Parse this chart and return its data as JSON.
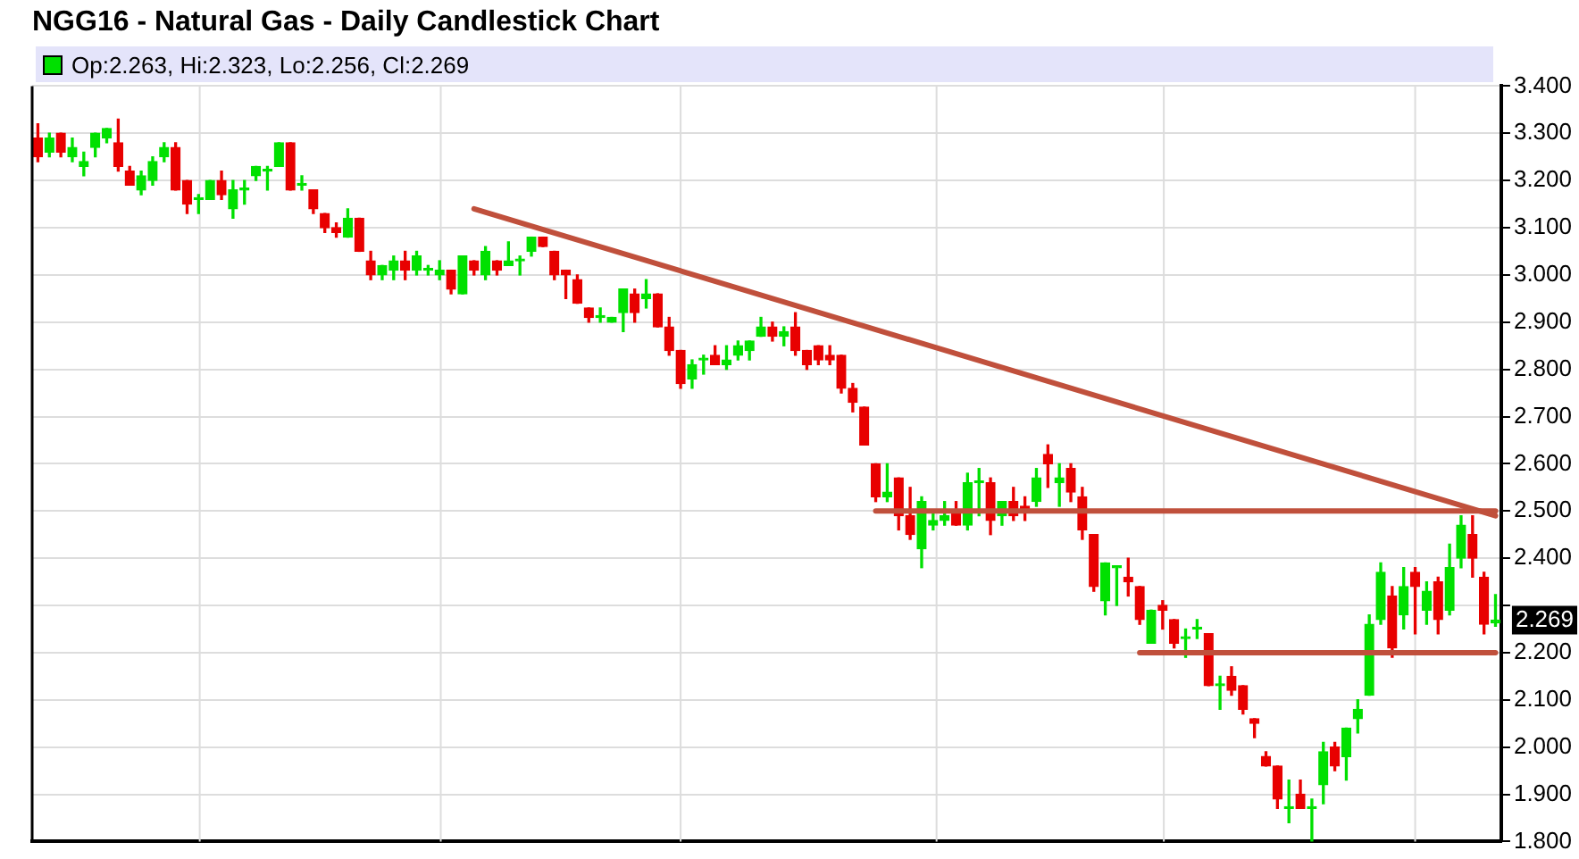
{
  "chart_data": {
    "type": "candlestick",
    "title": "NGG16 - Natural Gas - Daily Candlestick Chart",
    "categories": [
      null,
      null,
      null,
      null,
      null,
      null,
      null,
      null,
      null,
      null,
      null,
      null,
      null,
      null,
      null,
      null,
      null,
      null,
      null,
      null,
      null,
      null,
      null,
      null,
      null,
      null,
      null,
      null,
      null,
      null,
      null,
      null,
      null,
      null,
      null,
      null,
      null,
      null,
      null,
      null,
      null,
      null,
      null,
      null,
      null,
      null,
      null,
      null,
      null,
      null,
      null,
      null,
      null,
      null,
      null,
      null,
      null,
      null,
      null,
      null,
      null,
      null,
      null,
      null,
      null,
      null,
      null,
      null,
      null,
      null,
      null,
      null,
      null,
      null,
      null,
      null,
      null,
      null,
      null,
      null,
      null,
      null,
      null,
      null,
      null,
      null,
      null,
      null,
      null,
      null,
      null,
      null,
      null,
      null,
      null,
      null,
      null,
      null,
      null,
      null,
      null,
      null,
      null,
      null,
      null,
      null,
      null,
      null,
      null,
      null,
      null,
      null,
      null,
      null,
      null,
      null,
      null,
      null,
      null,
      null,
      null,
      null,
      null,
      null,
      null,
      null,
      null,
      null
    ],
    "ohlc": [
      [
        3.29,
        3.32,
        3.24,
        3.25
      ],
      [
        3.26,
        3.3,
        3.25,
        3.29
      ],
      [
        3.3,
        3.3,
        3.25,
        3.26
      ],
      [
        3.25,
        3.29,
        3.24,
        3.27
      ],
      [
        3.23,
        3.26,
        3.21,
        3.24
      ],
      [
        3.27,
        3.3,
        3.25,
        3.3
      ],
      [
        3.29,
        3.31,
        3.28,
        3.31
      ],
      [
        3.28,
        3.33,
        3.22,
        3.23
      ],
      [
        3.22,
        3.23,
        3.19,
        3.19
      ],
      [
        3.18,
        3.22,
        3.17,
        3.21
      ],
      [
        3.2,
        3.25,
        3.19,
        3.24
      ],
      [
        3.25,
        3.28,
        3.24,
        3.27
      ],
      [
        3.27,
        3.28,
        3.18,
        3.18
      ],
      [
        3.2,
        3.2,
        3.13,
        3.15
      ],
      [
        3.16,
        3.17,
        3.13,
        3.16
      ],
      [
        3.16,
        3.2,
        3.16,
        3.2
      ],
      [
        3.2,
        3.22,
        3.16,
        3.17
      ],
      [
        3.14,
        3.2,
        3.12,
        3.18
      ],
      [
        3.18,
        3.2,
        3.15,
        3.18
      ],
      [
        3.21,
        3.23,
        3.2,
        3.23
      ],
      [
        3.22,
        3.23,
        3.18,
        3.22
      ],
      [
        3.23,
        3.28,
        3.23,
        3.28
      ],
      [
        3.28,
        3.28,
        3.18,
        3.18
      ],
      [
        3.19,
        3.21,
        3.18,
        3.19
      ],
      [
        3.18,
        3.18,
        3.13,
        3.14
      ],
      [
        3.13,
        3.13,
        3.09,
        3.1
      ],
      [
        3.1,
        3.11,
        3.08,
        3.09
      ],
      [
        3.08,
        3.14,
        3.08,
        3.12
      ],
      [
        3.12,
        3.12,
        3.05,
        3.05
      ],
      [
        3.03,
        3.05,
        2.99,
        3.0
      ],
      [
        3.0,
        3.02,
        2.99,
        3.02
      ],
      [
        3.01,
        3.04,
        2.99,
        3.03
      ],
      [
        3.03,
        3.05,
        2.99,
        3.01
      ],
      [
        3.01,
        3.05,
        3.0,
        3.04
      ],
      [
        3.01,
        3.02,
        3.0,
        3.01
      ],
      [
        3.0,
        3.03,
        2.99,
        3.01
      ],
      [
        3.01,
        3.01,
        2.96,
        2.97
      ],
      [
        2.96,
        3.04,
        2.96,
        3.04
      ],
      [
        3.03,
        3.03,
        3.0,
        3.01
      ],
      [
        3.0,
        3.06,
        2.99,
        3.05
      ],
      [
        3.03,
        3.03,
        3.0,
        3.01
      ],
      [
        3.02,
        3.07,
        3.02,
        3.03
      ],
      [
        3.03,
        3.04,
        3.0,
        3.03
      ],
      [
        3.05,
        3.08,
        3.04,
        3.08
      ],
      [
        3.08,
        3.08,
        3.06,
        3.06
      ],
      [
        3.05,
        3.05,
        2.99,
        3.0
      ],
      [
        3.01,
        3.01,
        2.95,
        3.0
      ],
      [
        2.99,
        3.0,
        2.94,
        2.94
      ],
      [
        2.93,
        2.93,
        2.9,
        2.91
      ],
      [
        2.91,
        2.93,
        2.9,
        2.91
      ],
      [
        2.9,
        2.91,
        2.9,
        2.91
      ],
      [
        2.92,
        2.97,
        2.88,
        2.97
      ],
      [
        2.96,
        2.97,
        2.9,
        2.92
      ],
      [
        2.95,
        2.99,
        2.93,
        2.96
      ],
      [
        2.96,
        2.96,
        2.89,
        2.89
      ],
      [
        2.89,
        2.91,
        2.83,
        2.84
      ],
      [
        2.84,
        2.84,
        2.76,
        2.77
      ],
      [
        2.78,
        2.82,
        2.76,
        2.81
      ],
      [
        2.82,
        2.83,
        2.79,
        2.82
      ],
      [
        2.83,
        2.85,
        2.81,
        2.81
      ],
      [
        2.81,
        2.85,
        2.8,
        2.82
      ],
      [
        2.83,
        2.86,
        2.82,
        2.85
      ],
      [
        2.84,
        2.86,
        2.82,
        2.86
      ],
      [
        2.87,
        2.91,
        2.87,
        2.89
      ],
      [
        2.89,
        2.9,
        2.86,
        2.87
      ],
      [
        2.87,
        2.89,
        2.85,
        2.88
      ],
      [
        2.89,
        2.92,
        2.83,
        2.84
      ],
      [
        2.84,
        2.84,
        2.8,
        2.81
      ],
      [
        2.85,
        2.85,
        2.81,
        2.82
      ],
      [
        2.83,
        2.85,
        2.81,
        2.82
      ],
      [
        2.83,
        2.83,
        2.75,
        2.76
      ],
      [
        2.76,
        2.77,
        2.71,
        2.73
      ],
      [
        2.72,
        2.72,
        2.64,
        2.64
      ],
      [
        2.6,
        2.6,
        2.52,
        2.53
      ],
      [
        2.53,
        2.6,
        2.52,
        2.54
      ],
      [
        2.57,
        2.57,
        2.46,
        2.49
      ],
      [
        2.49,
        2.55,
        2.44,
        2.45
      ],
      [
        2.42,
        2.53,
        2.38,
        2.52
      ],
      [
        2.47,
        2.5,
        2.46,
        2.48
      ],
      [
        2.48,
        2.52,
        2.47,
        2.49
      ],
      [
        2.5,
        2.52,
        2.47,
        2.47
      ],
      [
        2.47,
        2.58,
        2.46,
        2.56
      ],
      [
        2.56,
        2.59,
        2.49,
        2.56
      ],
      [
        2.56,
        2.57,
        2.45,
        2.48
      ],
      [
        2.49,
        2.52,
        2.47,
        2.52
      ],
      [
        2.52,
        2.55,
        2.48,
        2.49
      ],
      [
        2.51,
        2.53,
        2.48,
        2.5
      ],
      [
        2.52,
        2.59,
        2.51,
        2.57
      ],
      [
        2.62,
        2.64,
        2.55,
        2.6
      ],
      [
        2.56,
        2.6,
        2.51,
        2.57
      ],
      [
        2.59,
        2.6,
        2.52,
        2.54
      ],
      [
        2.53,
        2.55,
        2.44,
        2.46
      ],
      [
        2.45,
        2.45,
        2.33,
        2.34
      ],
      [
        2.31,
        2.39,
        2.28,
        2.39
      ],
      [
        2.38,
        2.38,
        2.3,
        2.38
      ],
      [
        2.36,
        2.4,
        2.32,
        2.35
      ],
      [
        2.34,
        2.34,
        2.26,
        2.27
      ],
      [
        2.22,
        2.29,
        2.22,
        2.29
      ],
      [
        2.3,
        2.31,
        2.25,
        2.29
      ],
      [
        2.27,
        2.27,
        2.21,
        2.22
      ],
      [
        2.23,
        2.25,
        2.19,
        2.23
      ],
      [
        2.25,
        2.27,
        2.23,
        2.25
      ],
      [
        2.24,
        2.24,
        2.13,
        2.13
      ],
      [
        2.13,
        2.15,
        2.08,
        2.13
      ],
      [
        2.15,
        2.17,
        2.11,
        2.12
      ],
      [
        2.13,
        2.13,
        2.07,
        2.08
      ],
      [
        2.06,
        2.06,
        2.02,
        2.05
      ],
      [
        1.98,
        1.99,
        1.96,
        1.96
      ],
      [
        1.96,
        1.96,
        1.87,
        1.89
      ],
      [
        1.87,
        1.93,
        1.84,
        1.87
      ],
      [
        1.9,
        1.93,
        1.87,
        1.87
      ],
      [
        1.87,
        1.89,
        1.8,
        1.87
      ],
      [
        1.92,
        2.01,
        1.88,
        1.99
      ],
      [
        2.0,
        2.01,
        1.95,
        1.96
      ],
      [
        1.98,
        2.04,
        1.93,
        2.04
      ],
      [
        2.06,
        2.1,
        2.03,
        2.08
      ],
      [
        2.11,
        2.28,
        2.11,
        2.26
      ],
      [
        2.27,
        2.39,
        2.26,
        2.37
      ],
      [
        2.32,
        2.34,
        2.19,
        2.21
      ],
      [
        2.28,
        2.38,
        2.25,
        2.34
      ],
      [
        2.37,
        2.38,
        2.24,
        2.34
      ],
      [
        2.29,
        2.35,
        2.26,
        2.33
      ],
      [
        2.35,
        2.36,
        2.24,
        2.27
      ],
      [
        2.29,
        2.43,
        2.28,
        2.38
      ],
      [
        2.4,
        2.49,
        2.38,
        2.47
      ],
      [
        2.45,
        2.49,
        2.36,
        2.4
      ],
      [
        2.36,
        2.37,
        2.24,
        2.26
      ],
      [
        2.263,
        2.323,
        2.256,
        2.269
      ]
    ],
    "colors": [
      "#e80000",
      "#00e000",
      "#e80000",
      "#00e000",
      "#00e000",
      "#00e000",
      "#00e000",
      "#e80000",
      "#e80000",
      "#00e000",
      "#00e000",
      "#00e000",
      "#e80000",
      "#e80000",
      "#00e000",
      "#00e000",
      "#e80000",
      "#00e000",
      "#00e000",
      "#00e000",
      "#00e000",
      "#00e000",
      "#e80000",
      "#00e000",
      "#e80000",
      "#e80000",
      "#e80000",
      "#00e000",
      "#e80000",
      "#e80000",
      "#00e000",
      "#00e000",
      "#e80000",
      "#00e000",
      "#00e000",
      "#00e000",
      "#e80000",
      "#00e000",
      "#e80000",
      "#00e000",
      "#e80000",
      "#00e000",
      "#00e000",
      "#00e000",
      "#e80000",
      "#e80000",
      "#e80000",
      "#e80000",
      "#e80000",
      "#00e000",
      "#00e000",
      "#00e000",
      "#e80000",
      "#00e000",
      "#e80000",
      "#e80000",
      "#e80000",
      "#00e000",
      "#00e000",
      "#e80000",
      "#00e000",
      "#00e000",
      "#00e000",
      "#00e000",
      "#e80000",
      "#00e000",
      "#e80000",
      "#e80000",
      "#e80000",
      "#e80000",
      "#e80000",
      "#e80000",
      "#e80000",
      "#e80000",
      "#00e000",
      "#e80000",
      "#e80000",
      "#00e000",
      "#00e000",
      "#00e000",
      "#e80000",
      "#00e000",
      "#00e000",
      "#e80000",
      "#00e000",
      "#e80000",
      "#e80000",
      "#00e000",
      "#e80000",
      "#00e000",
      "#e80000",
      "#e80000",
      "#e80000",
      "#00e000",
      "#00e000",
      "#e80000",
      "#e80000",
      "#00e000",
      "#e80000",
      "#e80000",
      "#00e000",
      "#00e000",
      "#e80000",
      "#00e000",
      "#e80000",
      "#e80000",
      "#e80000",
      "#e80000",
      "#e80000",
      "#00e000",
      "#e80000",
      "#00e000",
      "#00e000",
      "#e80000",
      "#00e000",
      "#00e000",
      "#00e000",
      "#00e000",
      "#e80000",
      "#00e000",
      "#e80000",
      "#00e000",
      "#e80000",
      "#00e000",
      "#00e000",
      "#e80000",
      "#e80000",
      "#00e000"
    ],
    "series": [
      {
        "type": "line",
        "color": "#c0503c",
        "values": [
          null,
          null,
          null,
          null,
          null,
          null,
          null,
          null,
          null,
          null,
          null,
          null,
          null,
          null,
          null,
          null,
          null,
          null,
          null,
          null,
          null,
          null,
          null,
          null,
          null,
          null,
          null,
          null,
          null,
          null,
          null,
          null,
          null,
          null,
          null,
          null,
          null,
          null,
          3.14,
          null,
          null,
          null,
          null,
          null,
          null,
          null,
          null,
          null,
          null,
          null,
          null,
          null,
          null,
          null,
          null,
          null,
          null,
          null,
          null,
          null,
          null,
          null,
          null,
          null,
          null,
          null,
          null,
          null,
          null,
          null,
          null,
          null,
          null,
          null,
          null,
          null,
          null,
          null,
          null,
          null,
          null,
          null,
          null,
          null,
          null,
          null,
          null,
          null,
          null,
          null,
          null,
          null,
          null,
          null,
          null,
          null,
          null,
          null,
          null,
          null,
          null,
          null,
          null,
          null,
          null,
          null,
          null,
          null,
          null,
          null,
          null,
          null,
          null,
          null,
          null,
          null,
          null,
          null,
          null,
          null,
          null,
          null,
          null,
          null,
          null,
          null,
          null,
          2.49
        ]
      },
      {
        "type": "line",
        "color": "#c0503c",
        "values": [
          null,
          null,
          null,
          null,
          null,
          null,
          null,
          null,
          null,
          null,
          null,
          null,
          null,
          null,
          null,
          null,
          null,
          null,
          null,
          null,
          null,
          null,
          null,
          null,
          null,
          null,
          null,
          null,
          null,
          null,
          null,
          null,
          null,
          null,
          null,
          null,
          null,
          null,
          null,
          null,
          null,
          null,
          null,
          null,
          null,
          null,
          null,
          null,
          null,
          null,
          null,
          null,
          null,
          null,
          null,
          null,
          null,
          null,
          null,
          null,
          null,
          null,
          null,
          null,
          null,
          null,
          null,
          null,
          null,
          null,
          null,
          null,
          null,
          2.5,
          null,
          null,
          null,
          null,
          null,
          null,
          null,
          null,
          null,
          null,
          null,
          null,
          null,
          null,
          null,
          null,
          null,
          null,
          null,
          null,
          null,
          null,
          null,
          null,
          null,
          null,
          null,
          null,
          null,
          null,
          null,
          null,
          null,
          null,
          null,
          null,
          null,
          null,
          null,
          null,
          null,
          null,
          null,
          null,
          null,
          null,
          null,
          null,
          null,
          null,
          null,
          null,
          null,
          2.5
        ]
      },
      {
        "type": "line",
        "color": "#c0503c",
        "values": [
          null,
          null,
          null,
          null,
          null,
          null,
          null,
          null,
          null,
          null,
          null,
          null,
          null,
          null,
          null,
          null,
          null,
          null,
          null,
          null,
          null,
          null,
          null,
          null,
          null,
          null,
          null,
          null,
          null,
          null,
          null,
          null,
          null,
          null,
          null,
          null,
          null,
          null,
          null,
          null,
          null,
          null,
          null,
          null,
          null,
          null,
          null,
          null,
          null,
          null,
          null,
          null,
          null,
          null,
          null,
          null,
          null,
          null,
          null,
          null,
          null,
          null,
          null,
          null,
          null,
          null,
          null,
          null,
          null,
          null,
          null,
          null,
          null,
          null,
          null,
          null,
          null,
          null,
          null,
          null,
          null,
          null,
          null,
          null,
          null,
          null,
          null,
          null,
          null,
          null,
          null,
          null,
          null,
          null,
          null,
          null,
          2.2,
          null,
          null,
          null,
          null,
          null,
          null,
          null,
          null,
          null,
          null,
          null,
          null,
          null,
          null,
          null,
          null,
          null,
          null,
          null,
          null,
          null,
          null,
          null,
          null,
          null,
          null,
          null,
          null,
          null,
          null,
          2.2
        ]
      }
    ],
    "ylim": [
      1.8,
      3.4
    ],
    "yticks": [
      {
        "value": 1.8,
        "label": "1.800"
      },
      {
        "value": 1.9,
        "label": "1.900"
      },
      {
        "value": 2.0,
        "label": "2.000"
      },
      {
        "value": 2.1,
        "label": "2.100"
      },
      {
        "value": 2.2,
        "label": "2.200"
      },
      {
        "value": 2.3,
        "label": null
      },
      {
        "value": 2.4,
        "label": "2.400"
      },
      {
        "value": 2.5,
        "label": "2.500"
      },
      {
        "value": 2.6,
        "label": "2.600"
      },
      {
        "value": 2.7,
        "label": "2.700"
      },
      {
        "value": 2.8,
        "label": "2.800"
      },
      {
        "value": 2.9,
        "label": "2.900"
      },
      {
        "value": 3.0,
        "label": "3.000"
      },
      {
        "value": 3.1,
        "label": "3.100"
      },
      {
        "value": 3.2,
        "label": "3.200"
      },
      {
        "value": 3.3,
        "label": "3.300"
      },
      {
        "value": 3.4,
        "label": "3.400"
      }
    ],
    "grid": true,
    "annotations": [
      "Op:2.263, Hi:2.323, Lo:2.256, Cl:2.269",
      "2.269"
    ]
  }
}
